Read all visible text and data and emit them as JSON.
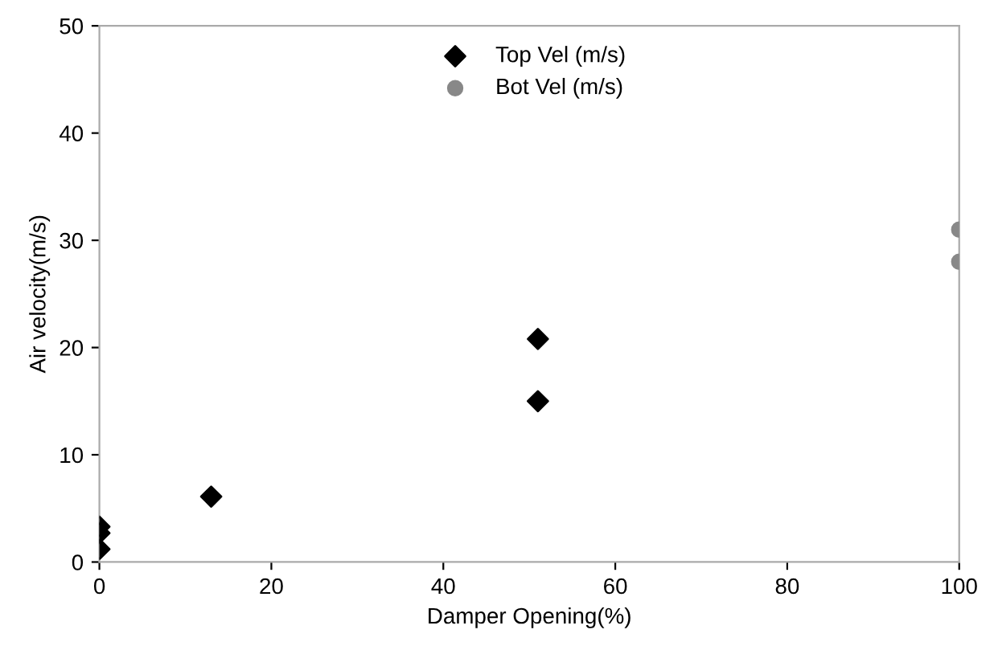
{
  "chart_data": {
    "type": "scatter",
    "xlabel": "Damper Opening(%)",
    "ylabel": "Air velocity(m/s)",
    "xlim": [
      0,
      100
    ],
    "ylim": [
      0,
      50
    ],
    "xticks": [
      0,
      20,
      40,
      60,
      80,
      100
    ],
    "yticks": [
      0,
      10,
      20,
      30,
      40,
      50
    ],
    "grid": false,
    "legend": "top",
    "series": [
      {
        "name": "Top Vel (m/s)",
        "color": "#000000",
        "marker": "diamond",
        "x": [
          0,
          0,
          0,
          13,
          51,
          51
        ],
        "values": [
          1.2,
          2.7,
          3.3,
          6.1,
          20.8,
          15.0
        ]
      },
      {
        "name": "Bot Vel (m/s)",
        "color": "#888888",
        "marker": "circle",
        "x": [
          100,
          100
        ],
        "values": [
          31,
          28
        ]
      }
    ]
  }
}
